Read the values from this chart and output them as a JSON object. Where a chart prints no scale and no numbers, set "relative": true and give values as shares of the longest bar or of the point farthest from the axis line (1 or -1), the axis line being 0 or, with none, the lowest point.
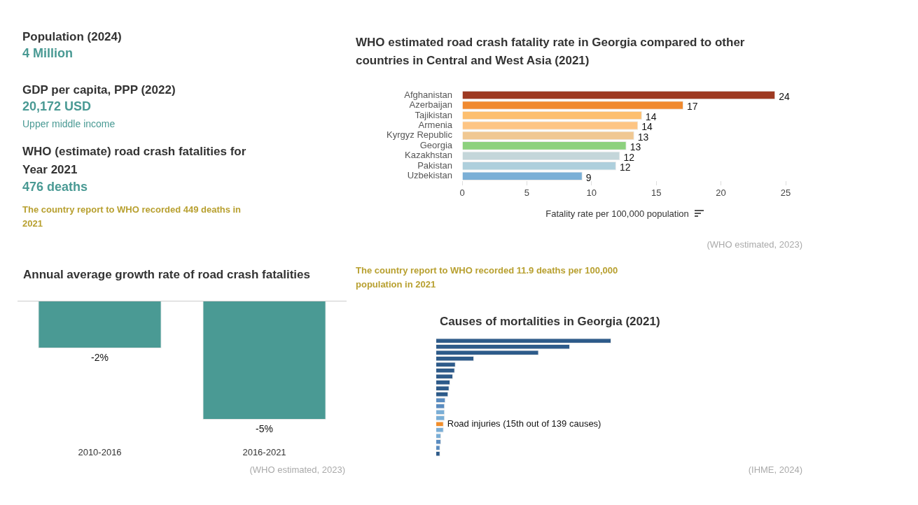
{
  "chart_data": [
    {
      "type": "other",
      "annotations": [
        "Population (2024)",
        "4 Million",
        "GDP per capita, PPP (2022)",
        "20,172 USD",
        "Upper middle income",
        "WHO (estimate) road crash fatalities for Year 2021",
        "476 deaths",
        "The country report to WHO recorded 449 deaths in 2021"
      ]
    },
    {
      "type": "bar",
      "orientation": "horizontal",
      "title": "WHO estimated road crash fatality rate in Georgia compared to other countries in Central and West Asia (2021)",
      "xlabel": "Fatality rate per 100,000 population",
      "categories": [
        "Afghanistan",
        "Azerbaijan",
        "Tajikistan",
        "Armenia",
        "Kyrgyz Republic",
        "Georgia",
        "Kazakhstan",
        "Pakistan",
        "Uzbekistan"
      ],
      "values": [
        24.2,
        17.1,
        13.9,
        13.6,
        13.3,
        12.7,
        12.2,
        11.9,
        9.3
      ],
      "value_labels": [
        "24",
        "17",
        "14",
        "14",
        "13",
        "13",
        "12",
        "12",
        "9"
      ],
      "colors": [
        "#9e3a22",
        "#f08a30",
        "#fdbf6f",
        "#fdc584",
        "#f0c892",
        "#8dd17e",
        "#c4d6da",
        "#aecfdc",
        "#7bafd6"
      ],
      "xlim": [
        0,
        25
      ],
      "xticks": [
        0,
        5,
        10,
        15,
        20,
        25
      ],
      "grid": false,
      "annotations": [
        "(WHO estimated, 2023)",
        "The country report to WHO recorded 11.9 deaths per 100,000 population in 2021"
      ]
    },
    {
      "type": "bar",
      "title": "Annual average growth rate of road crash fatalities",
      "categories": [
        "2010-2016",
        "2016-2021"
      ],
      "values": [
        -2,
        -5
      ],
      "color": "#4a9a94",
      "value_labels": [
        "-2%",
        "-5%"
      ],
      "annotations": [
        "(WHO estimated, 2023)"
      ]
    },
    {
      "type": "bar",
      "orientation": "horizontal",
      "relative": true,
      "title": "Causes of mortalities in Georgia (2021)",
      "categories": [
        null,
        null,
        null,
        null,
        null,
        null,
        null,
        null,
        null,
        null,
        null,
        null,
        null,
        null,
        "Road injuries (15th out of 139 causes)",
        null,
        null,
        null,
        null,
        null
      ],
      "values": [
        1,
        0.764,
        0.586,
        0.216,
        0.111,
        0.107,
        0.096,
        0.08,
        0.075,
        0.069,
        0.053,
        0.049,
        0.049,
        0.049,
        0.043,
        0.043,
        0.028,
        0.028,
        0.023,
        0.023
      ],
      "colors": [
        "#2e5b8a",
        "#2e5b8a",
        "#2e5b8a",
        "#2e5b8a",
        "#2e5b8a",
        "#2e5b8a",
        "#2e5b8a",
        "#2e5b8a",
        "#2e5b8a",
        "#2e5b8a",
        "#5a8cc0",
        "#5a8cc0",
        "#7aaed6",
        "#7aaed6",
        "#f28e2b",
        "#7aaed6",
        "#7aaed6",
        "#5a8cc0",
        "#5a8cc0",
        "#2e5b8a"
      ],
      "annotations": [
        "(IHME, 2024)"
      ]
    }
  ]
}
